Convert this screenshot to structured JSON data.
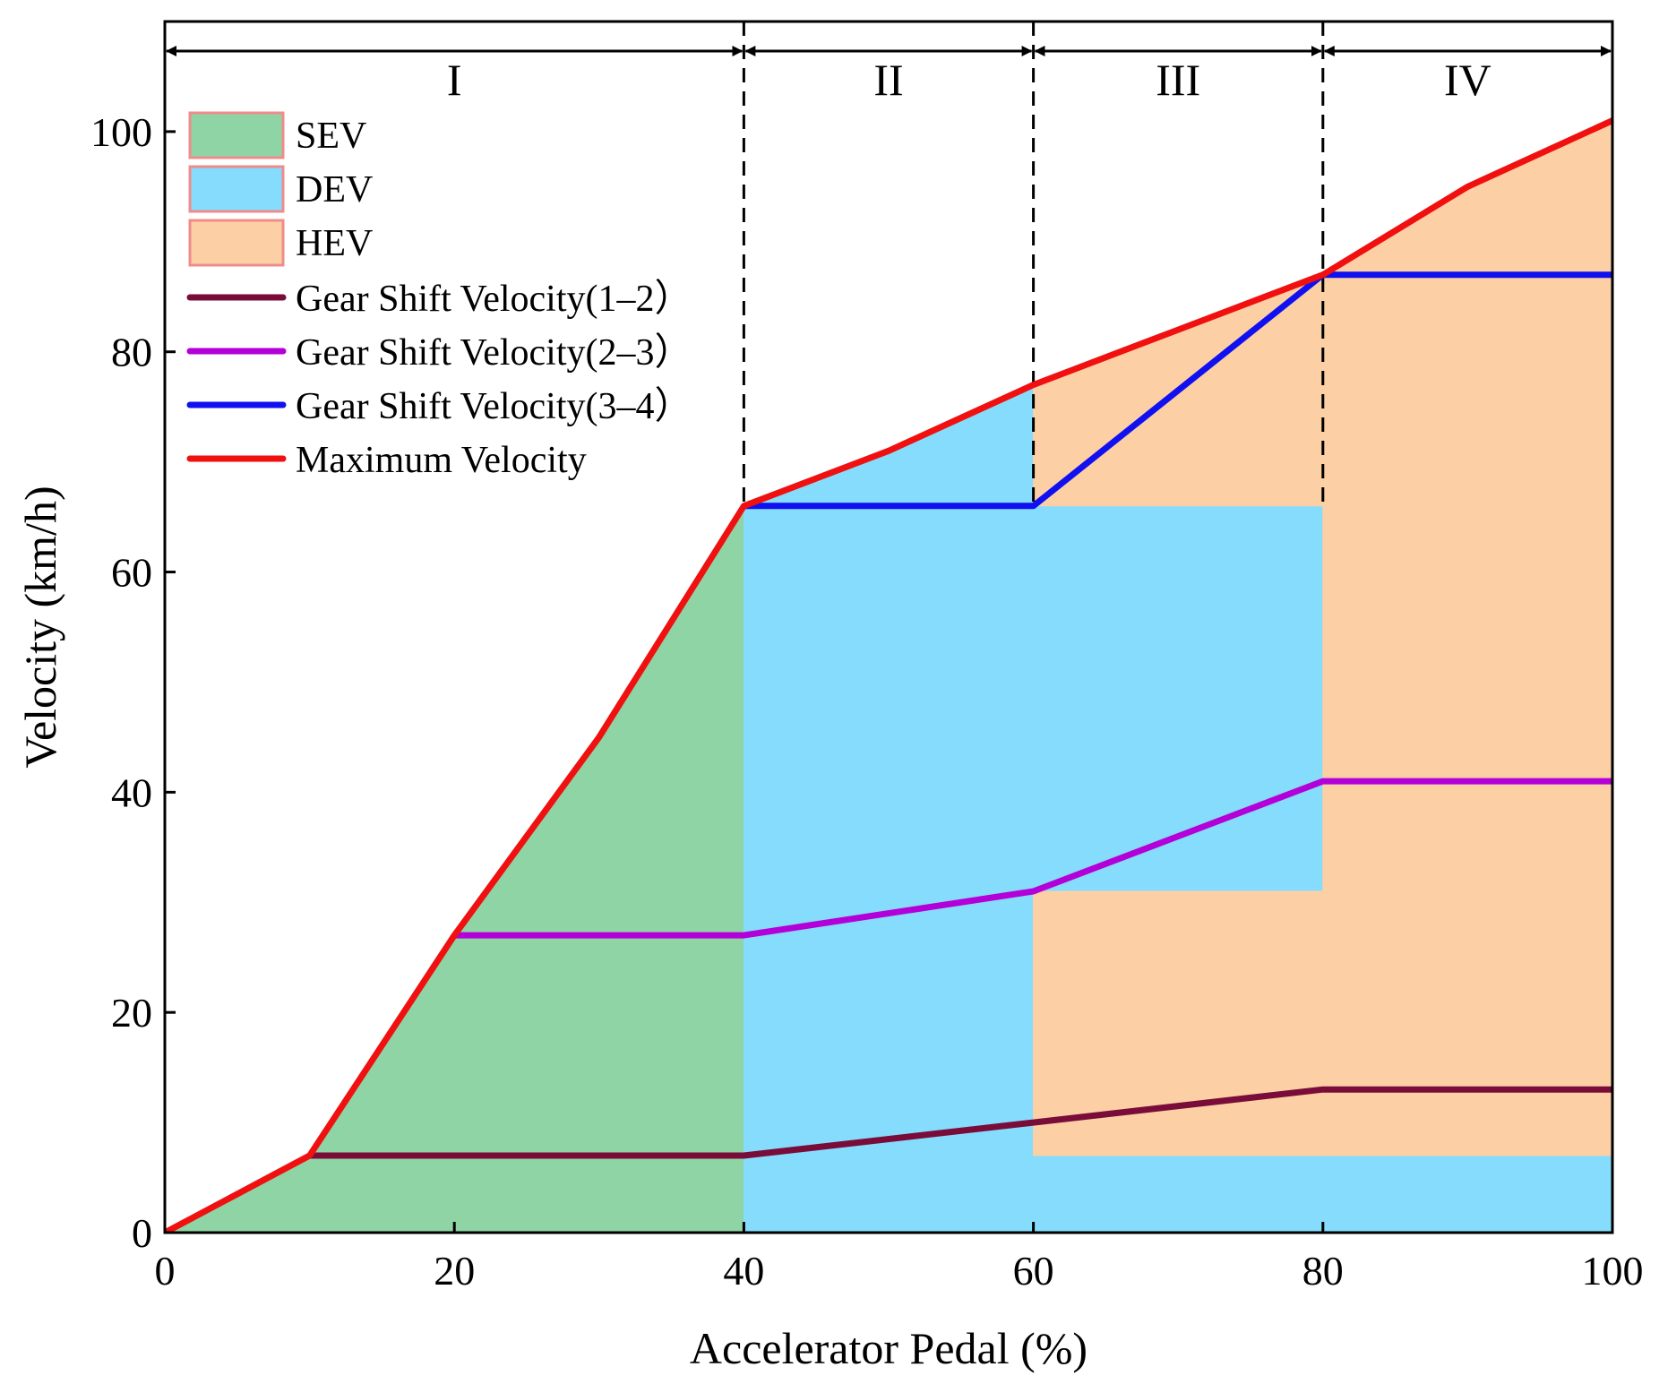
{
  "chart_data": {
    "type": "area",
    "xlabel": "Accelerator Pedal (%)",
    "ylabel": "Velocity (km/h)",
    "xlim": [
      0,
      100
    ],
    "ylim": [
      0,
      110
    ],
    "xticks": [
      0,
      20,
      40,
      60,
      80,
      100
    ],
    "yticks": [
      0,
      20,
      40,
      60,
      80,
      100
    ],
    "grid": false,
    "legend_position": "top-left",
    "regions": [
      {
        "label": "I",
        "x_start": 0,
        "x_end": 40
      },
      {
        "label": "II",
        "x_start": 40,
        "x_end": 60
      },
      {
        "label": "III",
        "x_start": 60,
        "x_end": 80
      },
      {
        "label": "IV",
        "x_start": 80,
        "x_end": 100
      }
    ],
    "boundaries_x": [
      40,
      60,
      80
    ],
    "areas": [
      {
        "name": "SEV",
        "color": "#8fd4a4",
        "polygons": [
          [
            [
              0,
              0
            ],
            [
              10,
              7
            ],
            [
              20,
              27
            ],
            [
              30,
              45
            ],
            [
              40,
              66
            ],
            [
              40,
              0
            ]
          ]
        ]
      },
      {
        "name": "DEV",
        "color": "#86dcfc",
        "polygons": [
          [
            [
              40,
              0
            ],
            [
              40,
              66
            ],
            [
              50,
              71
            ],
            [
              60,
              77
            ],
            [
              60,
              66
            ],
            [
              80,
              66
            ],
            [
              80,
              13
            ],
            [
              100,
              13
            ],
            [
              100,
              7
            ],
            [
              100,
              0
            ]
          ]
        ]
      },
      {
        "name": "HEV",
        "color": "#fcd0a4",
        "polygons": [
          [
            [
              60,
              77
            ],
            [
              70,
              82
            ],
            [
              80,
              87
            ],
            [
              90,
              95
            ],
            [
              100,
              101
            ],
            [
              100,
              13
            ],
            [
              80,
              13
            ],
            [
              80,
              66
            ],
            [
              60,
              66
            ]
          ],
          [
            [
              60,
              31
            ],
            [
              80,
              31
            ],
            [
              80,
              13
            ],
            [
              60,
              10
            ]
          ],
          [
            [
              60,
              10
            ],
            [
              80,
              13
            ],
            [
              100,
              13
            ],
            [
              100,
              7
            ],
            [
              60,
              7
            ]
          ]
        ]
      }
    ],
    "series": [
      {
        "name": "Gear Shift Velocity(1–2）",
        "color": "#7a0c3a",
        "x": [
          10,
          40,
          60,
          80,
          100
        ],
        "y": [
          7,
          7,
          10,
          13,
          13
        ]
      },
      {
        "name": "Gear Shift Velocity(2–3）",
        "color": "#b400d8",
        "x": [
          20,
          40,
          60,
          80,
          100
        ],
        "y": [
          27,
          27,
          31,
          41,
          41
        ]
      },
      {
        "name": "Gear Shift Velocity(3–4）",
        "color": "#1010f0",
        "x": [
          40,
          60,
          80,
          100
        ],
        "y": [
          66,
          66,
          87,
          87
        ]
      },
      {
        "name": "Maximum Velocity",
        "color": "#f01010",
        "x": [
          0,
          10,
          20,
          30,
          40,
          50,
          60,
          70,
          80,
          90,
          100
        ],
        "y": [
          0,
          7,
          27,
          45,
          66,
          71,
          77,
          82,
          87,
          95,
          101
        ]
      }
    ]
  }
}
